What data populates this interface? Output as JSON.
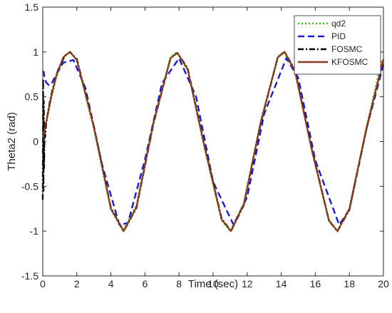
{
  "chart_data": {
    "type": "line",
    "xlabel": "Time (sec)",
    "ylabel": "Theta2 (rad)",
    "xlim": [
      0,
      20
    ],
    "ylim": [
      -1.5,
      1.5
    ],
    "xticks": [
      "0",
      "2",
      "4",
      "6",
      "8",
      "10",
      "12",
      "14",
      "16",
      "18",
      "20"
    ],
    "yticks": [
      "1.5",
      "1",
      "0.5",
      "0",
      "-0.5",
      "-1",
      "-1.5"
    ],
    "grid": false,
    "legend_position": "top-right",
    "series": [
      {
        "name": "qd2",
        "color": "#33cc00",
        "style": "dotted",
        "x": [
          0,
          0.1,
          0.2,
          0.35,
          0.5,
          0.8,
          1.2,
          1.57,
          2.0,
          3.0,
          4.0,
          4.71,
          5.5,
          6.5,
          7.5,
          7.85,
          8.5,
          9.5,
          10.5,
          11.0,
          11.8,
          12.8,
          13.8,
          14.14,
          14.8,
          15.8,
          16.8,
          17.28,
          18.0,
          19.0,
          19.9
        ],
        "y": [
          0.0,
          0.1,
          0.2,
          0.34,
          0.48,
          0.72,
          0.93,
          1.0,
          0.91,
          0.14,
          -0.76,
          -1.0,
          -0.71,
          0.22,
          0.94,
          1.0,
          0.8,
          -0.08,
          -0.88,
          -1.0,
          -0.69,
          0.23,
          0.95,
          1.0,
          0.79,
          -0.1,
          -0.89,
          -1.0,
          -0.75,
          0.15,
          0.91
        ]
      },
      {
        "name": "PID",
        "color": "#1a1ad6",
        "style": "dashed",
        "x": [
          0,
          0.05,
          0.1,
          0.2,
          0.35,
          0.5,
          0.8,
          1.2,
          1.8,
          2.5,
          3.5,
          4.5,
          5.0,
          6.0,
          7.0,
          8.0,
          9.0,
          10.0,
          11.2,
          12.0,
          13.0,
          14.3,
          15.0,
          16.0,
          17.4,
          18.0,
          19.0,
          20.0
        ],
        "y": [
          0.77,
          0.78,
          0.72,
          0.66,
          0.63,
          0.64,
          0.75,
          0.88,
          0.91,
          0.6,
          -0.27,
          -0.93,
          -0.91,
          -0.2,
          0.65,
          0.93,
          0.5,
          -0.45,
          -0.93,
          -0.62,
          0.31,
          0.93,
          0.71,
          -0.21,
          -0.93,
          -0.76,
          0.14,
          0.86
        ]
      },
      {
        "name": "FOSMC",
        "color": "#000000",
        "style": "dashdot",
        "x": [
          0,
          0.02,
          0.04,
          0.06,
          0.08,
          0.1,
          0.14,
          0.2,
          0.3,
          0.45,
          0.6,
          0.9,
          1.3,
          1.6,
          2.0,
          3.0,
          4.0,
          4.75,
          5.5,
          6.5,
          7.5,
          7.9,
          8.5,
          9.5,
          10.5,
          11.05,
          11.8,
          12.8,
          13.8,
          14.2,
          14.8,
          15.8,
          16.8,
          17.3,
          18.0,
          19.0,
          20.0
        ],
        "y": [
          -0.65,
          0.7,
          -0.55,
          0.45,
          -0.3,
          0.2,
          0.05,
          0.2,
          0.32,
          0.48,
          0.6,
          0.8,
          0.96,
          1.0,
          0.92,
          0.17,
          -0.74,
          -1.0,
          -0.74,
          0.2,
          0.93,
          0.99,
          0.82,
          -0.05,
          -0.86,
          -1.0,
          -0.71,
          0.21,
          0.94,
          1.0,
          0.8,
          -0.09,
          -0.88,
          -1.0,
          -0.76,
          0.14,
          0.92
        ]
      },
      {
        "name": "KFOSMC",
        "color": "#8b3a1a",
        "style": "solid",
        "x": [
          0,
          0.1,
          0.2,
          0.35,
          0.5,
          0.8,
          1.2,
          1.6,
          2.0,
          3.0,
          4.0,
          4.75,
          5.5,
          6.5,
          7.5,
          7.9,
          8.5,
          9.5,
          10.5,
          11.05,
          11.8,
          12.8,
          13.8,
          14.2,
          14.8,
          15.8,
          16.8,
          17.3,
          18.0,
          19.0,
          20.0
        ],
        "y": [
          0.02,
          0.12,
          0.22,
          0.36,
          0.5,
          0.74,
          0.94,
          1.0,
          0.91,
          0.16,
          -0.75,
          -1.0,
          -0.73,
          0.21,
          0.93,
          0.99,
          0.81,
          -0.06,
          -0.87,
          -1.0,
          -0.7,
          0.22,
          0.94,
          1.0,
          0.79,
          -0.1,
          -0.88,
          -1.0,
          -0.75,
          0.15,
          0.92
        ]
      }
    ]
  }
}
